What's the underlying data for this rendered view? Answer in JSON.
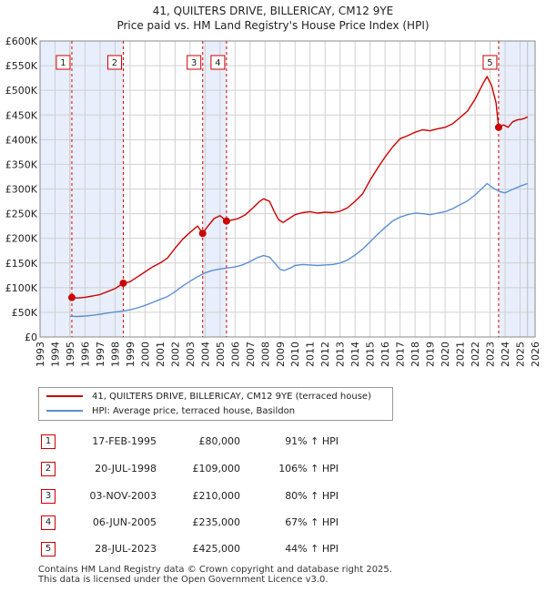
{
  "chart_data": {
    "type": "line",
    "title": "41, QUILTERS DRIVE, BILLERICAY, CM12 9YE",
    "subtitle": "Price paid vs. HM Land Registry's House Price Index (HPI)",
    "xlim": [
      1993,
      2026
    ],
    "ylim": [
      0,
      600000
    ],
    "x_ticks": [
      1993,
      1994,
      1995,
      1996,
      1997,
      1998,
      1999,
      2000,
      2001,
      2002,
      2003,
      2004,
      2005,
      2006,
      2007,
      2008,
      2009,
      2010,
      2011,
      2012,
      2013,
      2014,
      2015,
      2016,
      2017,
      2018,
      2019,
      2020,
      2021,
      2022,
      2023,
      2024,
      2025,
      2026
    ],
    "y_ticks": [
      {
        "value": 0,
        "label": "£0"
      },
      {
        "value": 50000,
        "label": "£50K"
      },
      {
        "value": 100000,
        "label": "£100K"
      },
      {
        "value": 150000,
        "label": "£150K"
      },
      {
        "value": 200000,
        "label": "£200K"
      },
      {
        "value": 250000,
        "label": "£250K"
      },
      {
        "value": 300000,
        "label": "£300K"
      },
      {
        "value": 350000,
        "label": "£350K"
      },
      {
        "value": 400000,
        "label": "£400K"
      },
      {
        "value": 450000,
        "label": "£450K"
      },
      {
        "value": 500000,
        "label": "£500K"
      },
      {
        "value": 550000,
        "label": "£550K"
      },
      {
        "value": 600000,
        "label": "£600K"
      }
    ],
    "grid": true,
    "data_range": [
      1995.0,
      2025.5
    ],
    "series": [
      {
        "name": "41, QUILTERS DRIVE, BILLERICAY, CM12 9YE (terraced house)",
        "color": "#cc0000",
        "points": [
          [
            1995.12,
            80000
          ],
          [
            1995.5,
            79000
          ],
          [
            1996.0,
            80500
          ],
          [
            1996.5,
            83000
          ],
          [
            1997.0,
            86000
          ],
          [
            1997.5,
            92000
          ],
          [
            1998.0,
            98000
          ],
          [
            1998.55,
            109000
          ],
          [
            1999.0,
            112000
          ],
          [
            1999.5,
            122000
          ],
          [
            2000.0,
            132000
          ],
          [
            2000.5,
            142000
          ],
          [
            2001.0,
            150000
          ],
          [
            2001.5,
            160000
          ],
          [
            2002.0,
            180000
          ],
          [
            2002.5,
            198000
          ],
          [
            2003.0,
            212000
          ],
          [
            2003.5,
            225000
          ],
          [
            2003.84,
            210000
          ],
          [
            2004.2,
            225000
          ],
          [
            2004.6,
            240000
          ],
          [
            2005.0,
            246000
          ],
          [
            2005.43,
            235000
          ],
          [
            2005.8,
            237000
          ],
          [
            2006.2,
            240000
          ],
          [
            2006.7,
            248000
          ],
          [
            2007.2,
            262000
          ],
          [
            2007.6,
            274000
          ],
          [
            2007.9,
            280000
          ],
          [
            2008.3,
            275000
          ],
          [
            2008.6,
            255000
          ],
          [
            2008.9,
            238000
          ],
          [
            2009.2,
            232000
          ],
          [
            2009.6,
            240000
          ],
          [
            2010.0,
            248000
          ],
          [
            2010.5,
            252000
          ],
          [
            2011.0,
            254000
          ],
          [
            2011.5,
            251000
          ],
          [
            2012.0,
            253000
          ],
          [
            2012.5,
            252000
          ],
          [
            2013.0,
            255000
          ],
          [
            2013.5,
            262000
          ],
          [
            2014.0,
            275000
          ],
          [
            2014.5,
            290000
          ],
          [
            2015.0,
            318000
          ],
          [
            2015.5,
            342000
          ],
          [
            2016.0,
            365000
          ],
          [
            2016.5,
            385000
          ],
          [
            2017.0,
            402000
          ],
          [
            2017.5,
            408000
          ],
          [
            2018.0,
            415000
          ],
          [
            2018.5,
            420000
          ],
          [
            2019.0,
            418000
          ],
          [
            2019.5,
            422000
          ],
          [
            2020.0,
            425000
          ],
          [
            2020.5,
            432000
          ],
          [
            2021.0,
            445000
          ],
          [
            2021.5,
            458000
          ],
          [
            2022.0,
            482000
          ],
          [
            2022.5,
            512000
          ],
          [
            2022.8,
            528000
          ],
          [
            2023.1,
            510000
          ],
          [
            2023.4,
            475000
          ],
          [
            2023.57,
            425000
          ],
          [
            2023.9,
            430000
          ],
          [
            2024.2,
            425000
          ],
          [
            2024.5,
            436000
          ],
          [
            2024.8,
            440000
          ],
          [
            2025.2,
            442000
          ],
          [
            2025.5,
            446000
          ]
        ]
      },
      {
        "name": "HPI: Average price, terraced house, Basildon",
        "color": "#5b8fd4",
        "points": [
          [
            1995.0,
            42000
          ],
          [
            1995.5,
            41500
          ],
          [
            1996.0,
            42500
          ],
          [
            1996.5,
            44000
          ],
          [
            1997.0,
            46000
          ],
          [
            1997.5,
            48500
          ],
          [
            1998.0,
            50500
          ],
          [
            1998.5,
            52500
          ],
          [
            1999.0,
            55000
          ],
          [
            1999.5,
            59000
          ],
          [
            2000.0,
            64000
          ],
          [
            2000.5,
            70000
          ],
          [
            2001.0,
            76000
          ],
          [
            2001.5,
            82000
          ],
          [
            2002.0,
            92000
          ],
          [
            2002.5,
            103000
          ],
          [
            2003.0,
            113000
          ],
          [
            2003.5,
            122000
          ],
          [
            2004.0,
            130000
          ],
          [
            2004.5,
            135000
          ],
          [
            2005.0,
            138000
          ],
          [
            2005.5,
            140000
          ],
          [
            2006.0,
            142000
          ],
          [
            2006.5,
            146000
          ],
          [
            2007.0,
            153000
          ],
          [
            2007.5,
            161000
          ],
          [
            2007.9,
            165000
          ],
          [
            2008.3,
            162000
          ],
          [
            2008.7,
            148000
          ],
          [
            2009.0,
            137000
          ],
          [
            2009.3,
            135000
          ],
          [
            2009.7,
            140000
          ],
          [
            2010.0,
            145000
          ],
          [
            2010.5,
            147000
          ],
          [
            2011.0,
            146000
          ],
          [
            2011.5,
            145000
          ],
          [
            2012.0,
            146000
          ],
          [
            2012.5,
            147000
          ],
          [
            2013.0,
            150000
          ],
          [
            2013.5,
            156000
          ],
          [
            2014.0,
            166000
          ],
          [
            2014.5,
            178000
          ],
          [
            2015.0,
            193000
          ],
          [
            2015.5,
            208000
          ],
          [
            2016.0,
            222000
          ],
          [
            2016.5,
            235000
          ],
          [
            2017.0,
            243000
          ],
          [
            2017.5,
            248000
          ],
          [
            2018.0,
            251000
          ],
          [
            2018.5,
            250000
          ],
          [
            2019.0,
            248000
          ],
          [
            2019.5,
            251000
          ],
          [
            2020.0,
            254000
          ],
          [
            2020.5,
            260000
          ],
          [
            2021.0,
            268000
          ],
          [
            2021.5,
            276000
          ],
          [
            2022.0,
            288000
          ],
          [
            2022.5,
            302000
          ],
          [
            2022.8,
            311000
          ],
          [
            2023.2,
            302000
          ],
          [
            2023.6,
            295000
          ],
          [
            2024.0,
            292000
          ],
          [
            2024.4,
            298000
          ],
          [
            2024.8,
            303000
          ],
          [
            2025.2,
            308000
          ],
          [
            2025.5,
            311000
          ]
        ]
      }
    ],
    "sales": [
      {
        "num": "1",
        "year": 1995.12,
        "price": 80000,
        "date": "17-FEB-1995",
        "price_label": "£80,000",
        "hpi_label": "91% ↑ HPI"
      },
      {
        "num": "2",
        "year": 1998.55,
        "price": 109000,
        "date": "20-JUL-1998",
        "price_label": "£109,000",
        "hpi_label": "106% ↑ HPI"
      },
      {
        "num": "3",
        "year": 2003.84,
        "price": 210000,
        "date": "03-NOV-2003",
        "price_label": "£210,000",
        "hpi_label": "80% ↑ HPI"
      },
      {
        "num": "4",
        "year": 2005.43,
        "price": 235000,
        "date": "06-JUN-2005",
        "price_label": "£235,000",
        "hpi_label": "67% ↑ HPI"
      },
      {
        "num": "5",
        "year": 2023.57,
        "price": 425000,
        "date": "28-JUL-2023",
        "price_label": "£425,000",
        "hpi_label": "44% ↑ HPI"
      }
    ]
  },
  "legend": {
    "property_label": "41, QUILTERS DRIVE, BILLERICAY, CM12 9YE (terraced house)",
    "hpi_label": "HPI: Average price, terraced house, Basildon"
  },
  "footer": {
    "line1": "Contains HM Land Registry data © Crown copyright and database right 2025.",
    "line2": "This data is licensed under the Open Government Licence v3.0."
  },
  "colors": {
    "property": "#cc0000",
    "hpi": "#5b8fd4",
    "band": "#e8eefb",
    "grid": "#d0d0d0",
    "marker_line": "#cc0000"
  }
}
